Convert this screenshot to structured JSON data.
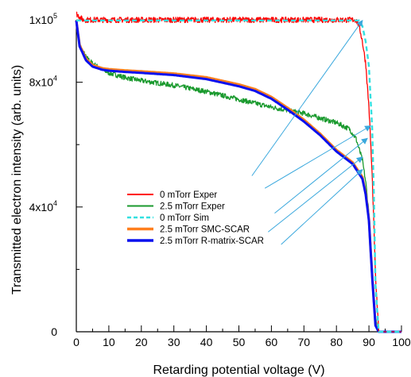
{
  "chart_data": {
    "type": "line",
    "xlabel": "Retarding potential voltage (V)",
    "ylabel": "Transmitted electron intensity (arb. units)",
    "xlim": [
      0,
      100
    ],
    "ylim": [
      0,
      100000
    ],
    "x_ticks": [
      {
        "value": 0,
        "label": "0"
      },
      {
        "value": 10,
        "label": "10"
      },
      {
        "value": 20,
        "label": "20"
      },
      {
        "value": 30,
        "label": "30"
      },
      {
        "value": 40,
        "label": "40"
      },
      {
        "value": 50,
        "label": "50"
      },
      {
        "value": 60,
        "label": "60"
      },
      {
        "value": 70,
        "label": "70"
      },
      {
        "value": 80,
        "label": "80"
      },
      {
        "value": 90,
        "label": "90"
      },
      {
        "value": 100,
        "label": "100"
      }
    ],
    "y_ticks": [
      {
        "value": 0,
        "base": "0",
        "exp": ""
      },
      {
        "value": 40000,
        "base": "4x10",
        "exp": "4"
      },
      {
        "value": 80000,
        "base": "8x10",
        "exp": "4"
      },
      {
        "value": 100000,
        "base": "1x10",
        "exp": "5"
      }
    ],
    "legend_position": "center-left",
    "series": [
      {
        "name": "0 mTorr Exper",
        "color": "#ff0000",
        "style": "solid-noisy",
        "noise": 900,
        "x": [
          0,
          2,
          10,
          20,
          30,
          40,
          50,
          60,
          70,
          80,
          86,
          87,
          88,
          89,
          90,
          91,
          92,
          93,
          95,
          100
        ],
        "y": [
          102000,
          100000,
          100000,
          100000,
          100000,
          100000,
          100000,
          100000,
          100000,
          100000,
          100000,
          98000,
          93000,
          86000,
          72000,
          50000,
          18000,
          0,
          0,
          0
        ]
      },
      {
        "name": "2.5 mTorr Exper",
        "color": "#1a9a2e",
        "style": "solid-noisy",
        "noise": 800,
        "x": [
          0,
          1,
          3,
          5,
          8,
          10,
          15,
          20,
          30,
          40,
          50,
          60,
          70,
          75,
          80,
          84,
          86,
          88,
          89,
          90,
          91,
          92,
          93,
          95,
          100
        ],
        "y": [
          99000,
          92000,
          88000,
          86000,
          84000,
          83000,
          81500,
          80500,
          79000,
          77000,
          74500,
          72000,
          70000,
          68500,
          67000,
          65000,
          62000,
          55000,
          48000,
          38000,
          20000,
          5000,
          0,
          0,
          0
        ]
      },
      {
        "name": "0 mTorr Sim",
        "color": "#33e0e0",
        "style": "dashed",
        "x": [
          0,
          10,
          20,
          30,
          40,
          50,
          60,
          70,
          80,
          87,
          88,
          89,
          90,
          91,
          91.5,
          92,
          93,
          95,
          100
        ],
        "y": [
          99800,
          99800,
          99800,
          99800,
          99800,
          99800,
          99800,
          99800,
          99800,
          99800,
          98000,
          93000,
          85000,
          65000,
          45000,
          15000,
          0,
          0,
          0
        ]
      },
      {
        "name": "2.5 mTorr SMC-SCAR",
        "color": "#ff7f1e",
        "style": "solid",
        "x": [
          0,
          1,
          3,
          5,
          8,
          10,
          15,
          20,
          30,
          40,
          50,
          55,
          60,
          65,
          70,
          75,
          80,
          85,
          88,
          89,
          90,
          91,
          92,
          93,
          95,
          100
        ],
        "y": [
          99800,
          92000,
          87500,
          85500,
          84500,
          84200,
          83800,
          83500,
          82800,
          81600,
          79300,
          77800,
          75300,
          71800,
          68000,
          63500,
          58300,
          54300,
          49600,
          44500,
          36000,
          18000,
          2500,
          0,
          0,
          0
        ]
      },
      {
        "name": "2.5 mTorr R-matrix-SCAR",
        "color": "#0a10ee",
        "style": "solid",
        "x": [
          0,
          1,
          3,
          5,
          8,
          10,
          15,
          20,
          30,
          40,
          50,
          55,
          60,
          65,
          70,
          75,
          80,
          85,
          88,
          89,
          90,
          91,
          92,
          93,
          95,
          100
        ],
        "y": [
          99800,
          91500,
          87000,
          85000,
          84000,
          83700,
          83300,
          83000,
          82300,
          81000,
          78700,
          77200,
          74700,
          71200,
          67400,
          63000,
          57800,
          53800,
          49000,
          44000,
          35500,
          17500,
          2000,
          0,
          0,
          0
        ]
      }
    ],
    "annotations": [
      {
        "from": [
          54,
          50000
        ],
        "to": [
          88,
          99800
        ]
      },
      {
        "from": [
          58,
          46000
        ],
        "to": [
          90.5,
          66000
        ]
      },
      {
        "from": [
          61,
          38000
        ],
        "to": [
          89.5,
          62000
        ]
      },
      {
        "from": [
          59,
          32000
        ],
        "to": [
          88,
          56000
        ]
      },
      {
        "from": [
          63,
          28000
        ],
        "to": [
          88,
          52000
        ]
      }
    ]
  }
}
